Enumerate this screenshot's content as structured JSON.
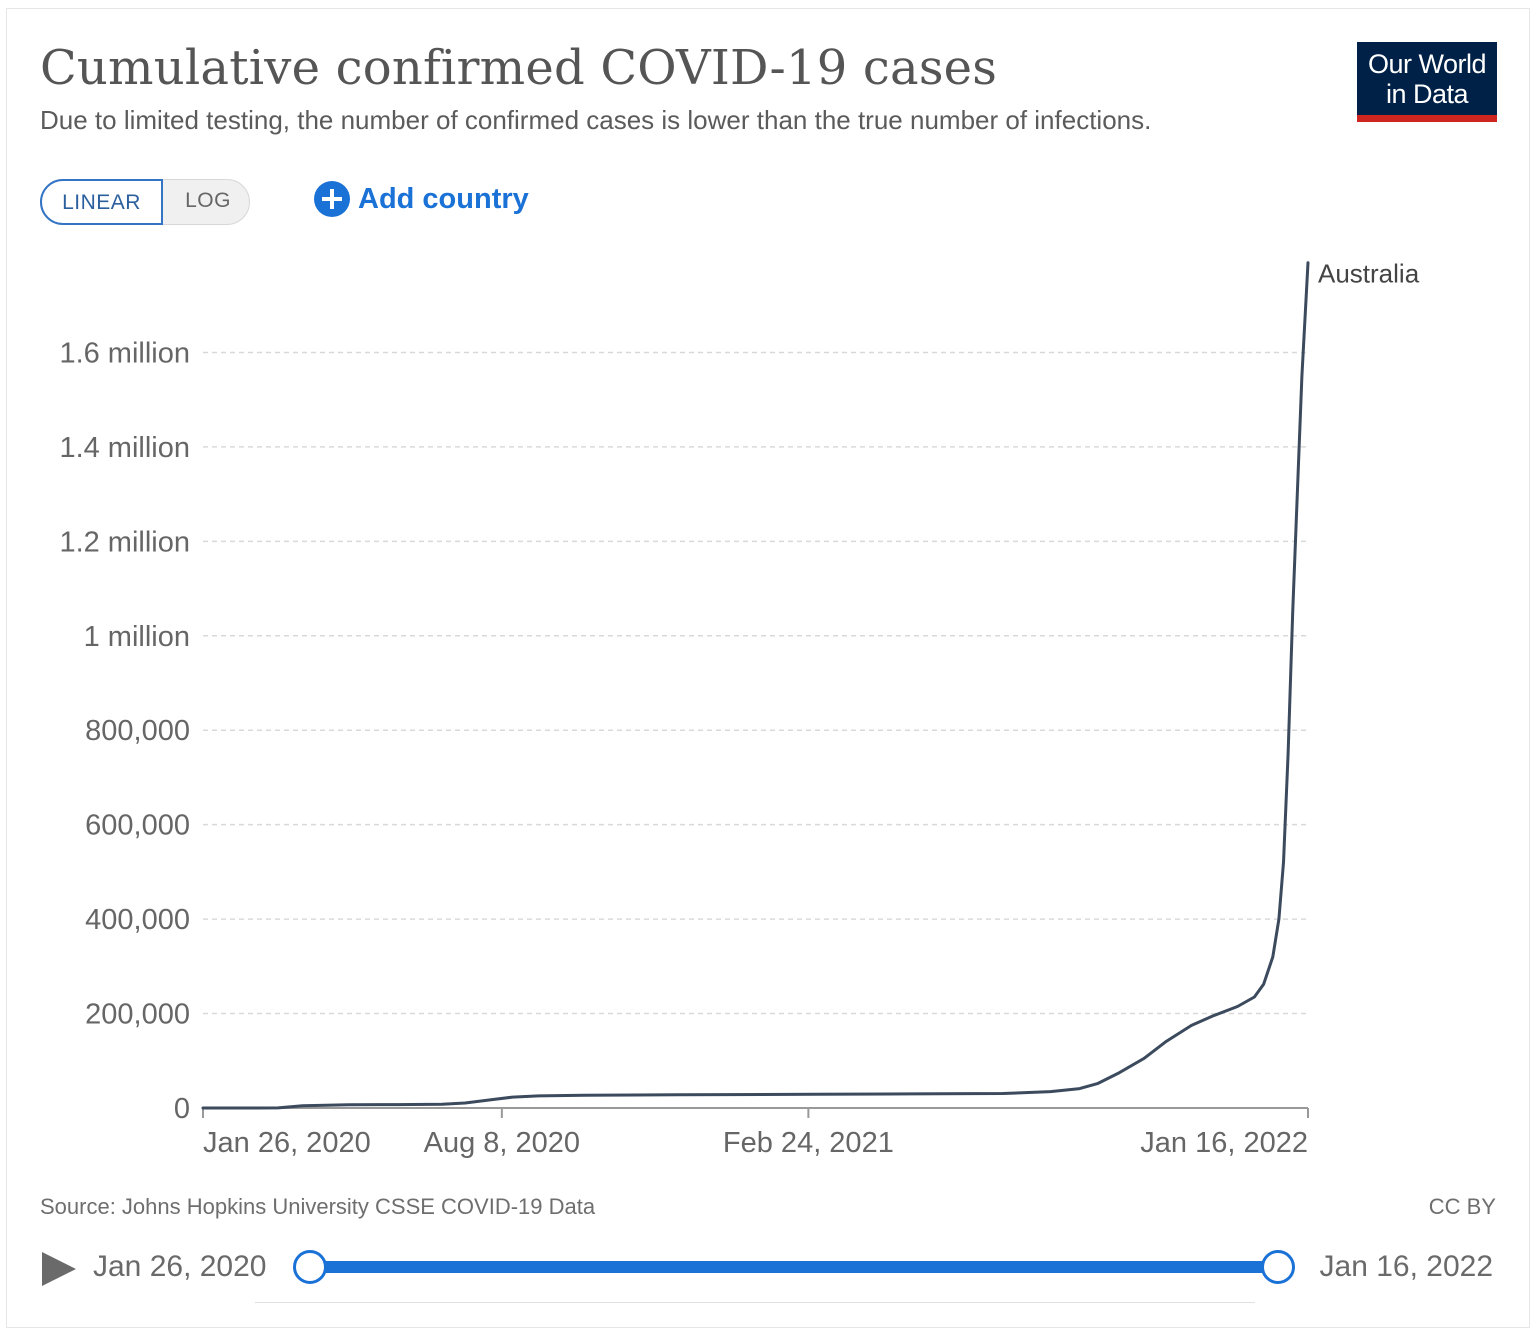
{
  "header": {
    "title": "Cumulative confirmed COVID-19 cases",
    "subtitle": "Due to limited testing, the number of confirmed cases is lower than the true number of infections.",
    "logo_line1": "Our World",
    "logo_line2": "in Data"
  },
  "controls": {
    "scale_linear": "LINEAR",
    "scale_log": "LOG",
    "selected_scale": "LINEAR",
    "add_country": "Add country"
  },
  "chart_data": {
    "type": "line",
    "title": "Cumulative confirmed COVID-19 cases",
    "xlabel": "",
    "ylabel": "",
    "x_range": [
      "2020-01-26",
      "2022-01-16"
    ],
    "ylim": [
      0,
      1800000
    ],
    "y_ticks": [
      0,
      200000,
      400000,
      600000,
      800000,
      1000000,
      1200000,
      1400000,
      1600000
    ],
    "y_tick_labels": [
      "0",
      "200,000",
      "400,000",
      "600,000",
      "800,000",
      "1 million",
      "1.2 million",
      "1.4 million",
      "1.6 million"
    ],
    "x_ticks": [
      "2020-01-26",
      "2020-08-08",
      "2021-02-24",
      "2022-01-16"
    ],
    "x_tick_labels": [
      "Jan 26, 2020",
      "Aug 8, 2020",
      "Feb 24, 2021",
      "Jan 16, 2022"
    ],
    "grid": "horizontal dashed",
    "line_color": "#3c4a5e",
    "series": [
      {
        "name": "Australia",
        "points": [
          [
            "2020-01-26",
            4
          ],
          [
            "2020-03-01",
            27
          ],
          [
            "2020-03-15",
            300
          ],
          [
            "2020-03-31",
            4800
          ],
          [
            "2020-04-30",
            6800
          ],
          [
            "2020-06-01",
            7200
          ],
          [
            "2020-06-30",
            7900
          ],
          [
            "2020-07-15",
            10500
          ],
          [
            "2020-08-01",
            17300
          ],
          [
            "2020-08-15",
            23000
          ],
          [
            "2020-09-01",
            25700
          ],
          [
            "2020-10-01",
            27100
          ],
          [
            "2020-12-01",
            27900
          ],
          [
            "2021-01-01",
            28400
          ],
          [
            "2021-03-01",
            29000
          ],
          [
            "2021-05-01",
            29800
          ],
          [
            "2021-07-01",
            30600
          ],
          [
            "2021-08-01",
            34700
          ],
          [
            "2021-08-20",
            41000
          ],
          [
            "2021-09-01",
            52000
          ],
          [
            "2021-09-15",
            75000
          ],
          [
            "2021-10-01",
            105000
          ],
          [
            "2021-10-15",
            140000
          ],
          [
            "2021-11-01",
            175000
          ],
          [
            "2021-11-15",
            195000
          ],
          [
            "2021-12-01",
            215000
          ],
          [
            "2021-12-12",
            235000
          ],
          [
            "2021-12-18",
            262000
          ],
          [
            "2021-12-24",
            320000
          ],
          [
            "2021-12-28",
            400000
          ],
          [
            "2021-12-31",
            520000
          ],
          [
            "2022-01-03",
            750000
          ],
          [
            "2022-01-06",
            1050000
          ],
          [
            "2022-01-09",
            1300000
          ],
          [
            "2022-01-12",
            1550000
          ],
          [
            "2022-01-16",
            1790000
          ]
        ]
      }
    ]
  },
  "footer": {
    "source": "Source: Johns Hopkins University CSSE COVID-19 Data",
    "license": "CC BY"
  },
  "timeline": {
    "start_label": "Jan 26, 2020",
    "end_label": "Jan 16, 2022"
  }
}
